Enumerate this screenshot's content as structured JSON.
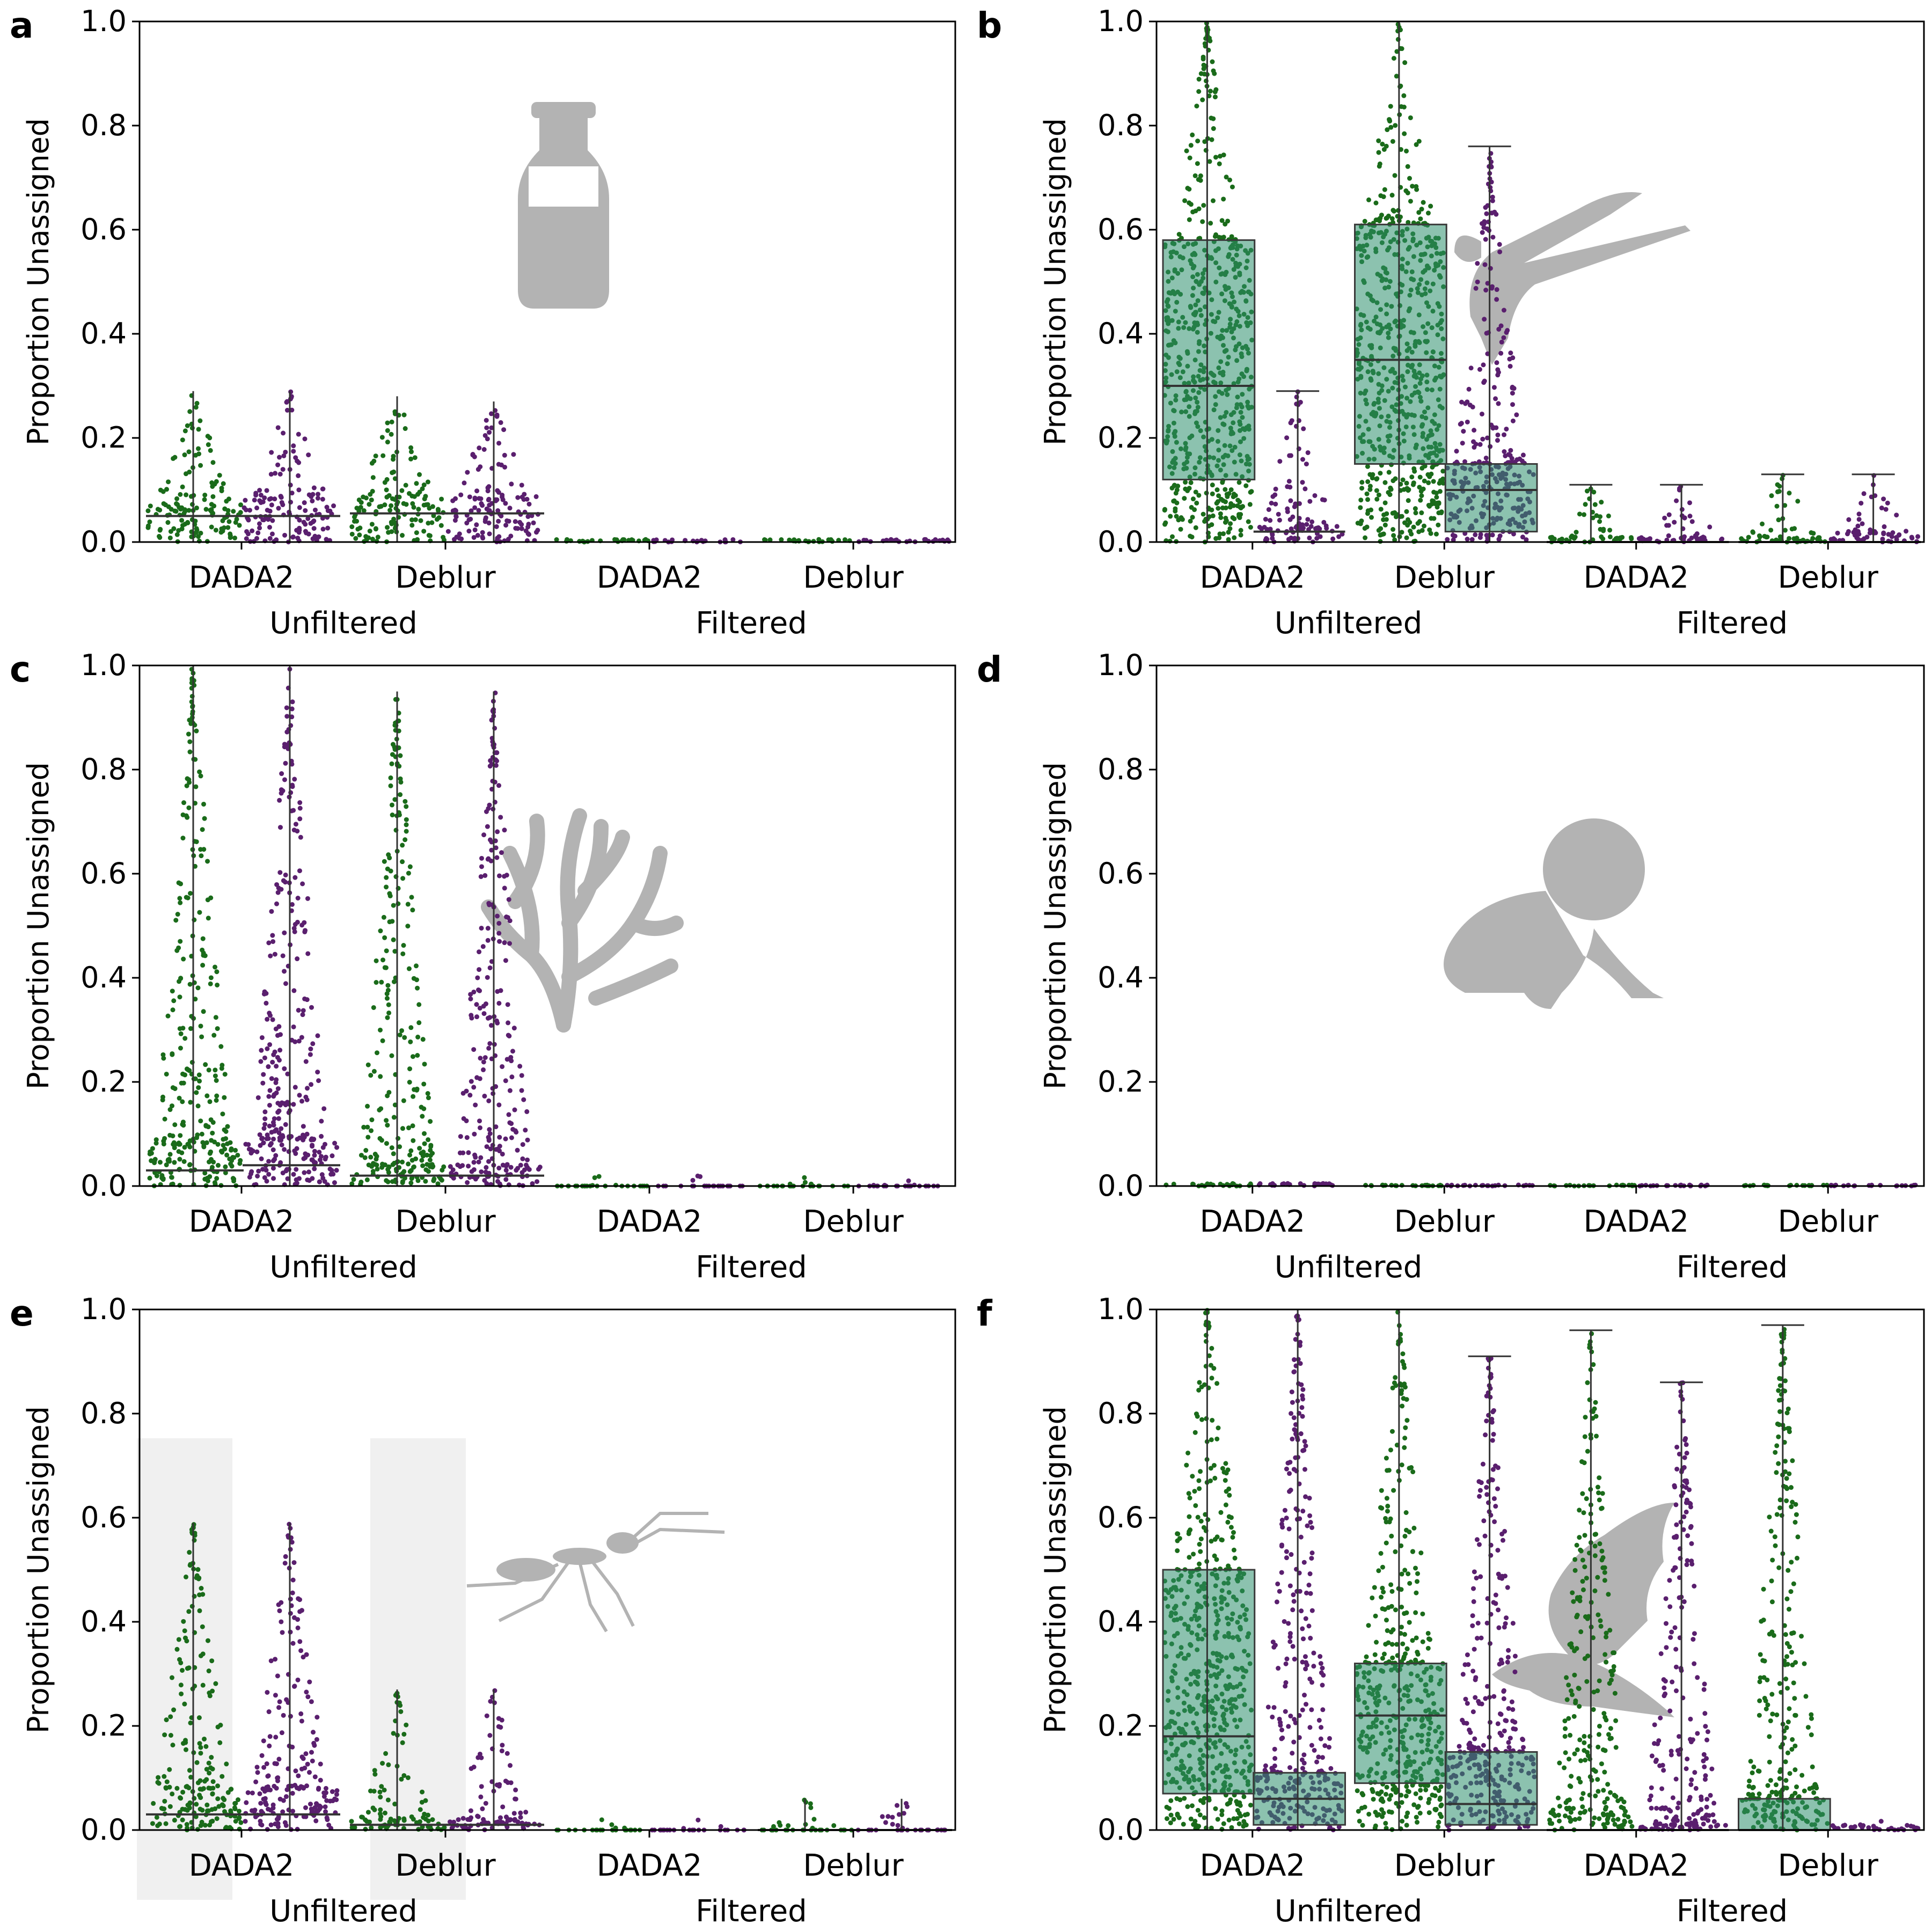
{
  "figure": {
    "ylabel": "Proportion Unassigned",
    "yticks": [
      "0.0",
      "0.2",
      "0.4",
      "0.6",
      "0.8",
      "1.0"
    ],
    "categories": [
      "DADA2",
      "Deblur",
      "DADA2",
      "Deblur"
    ],
    "groups": [
      "Unfiltered",
      "Filtered"
    ],
    "colors": {
      "dada2": "#1a6b1a",
      "deblur": "#5a1f6e",
      "silhouette": "#b3b3b3",
      "box": "#2d8f6e"
    }
  },
  "chart_data": [
    {
      "panel": "a",
      "type": "swarm",
      "silhouette": "milk-bottle-icon",
      "ylim": [
        0,
        1
      ],
      "ylabel": "Proportion Unassigned",
      "categories": [
        "DADA2",
        "Deblur",
        "DADA2",
        "Deblur"
      ],
      "groups": [
        "Unfiltered",
        "Filtered"
      ],
      "series": [
        {
          "values": [
            [
              0.0,
              0.29,
              0.05,
              0.03
            ],
            [
              0.0,
              0.28,
              0.055,
              0.03
            ],
            [
              0.0,
              0.005,
              0.0,
              0.0
            ],
            [
              0.0,
              0.005,
              0.0,
              0.0
            ]
          ]
        },
        {
          "values": [
            [
              0.0,
              0.29,
              0.05,
              0.03
            ],
            [
              0.0,
              0.27,
              0.055,
              0.03
            ],
            [
              0.0,
              0.005,
              0.0,
              0.0
            ],
            [
              0.0,
              0.005,
              0.0,
              0.0
            ]
          ]
        }
      ]
    },
    {
      "panel": "b",
      "type": "box+swarm",
      "silhouette": "hummingbird-icon",
      "ylim": [
        0,
        1
      ],
      "ylabel": "Proportion Unassigned",
      "categories": [
        "DADA2",
        "Deblur",
        "DADA2",
        "Deblur"
      ],
      "groups": [
        "Unfiltered",
        "Filtered"
      ],
      "series": [
        {
          "values": [
            [
              0.0,
              1.0,
              0.3,
              0.12,
              0.58
            ],
            [
              0.0,
              1.0,
              0.35,
              0.15,
              0.61
            ],
            [
              0.0,
              0.11,
              0.0,
              0.0,
              0.01
            ],
            [
              0.0,
              0.13,
              0.0,
              0.0,
              0.01
            ]
          ]
        },
        {
          "values": [
            [
              0.0,
              0.29,
              0.02,
              0.0,
              0.03
            ],
            [
              0.0,
              0.76,
              0.1,
              0.02,
              0.15
            ],
            [
              0.0,
              0.11,
              0.0,
              0.0,
              0.01
            ],
            [
              0.0,
              0.13,
              0.0,
              0.0,
              0.02
            ]
          ]
        }
      ]
    },
    {
      "panel": "c",
      "type": "swarm",
      "silhouette": "coral-icon",
      "ylim": [
        0,
        1
      ],
      "ylabel": "Proportion Unassigned",
      "categories": [
        "DADA2",
        "Deblur",
        "DADA2",
        "Deblur"
      ],
      "groups": [
        "Unfiltered",
        "Filtered"
      ],
      "series": [
        {
          "values": [
            [
              0.0,
              1.0,
              0.03,
              0.01,
              0.08
            ],
            [
              0.0,
              0.95,
              0.02,
              0.01,
              0.04
            ],
            [
              0.0,
              0.02,
              0.0,
              0.0,
              0.0
            ],
            [
              0.0,
              0.02,
              0.0,
              0.0,
              0.0
            ]
          ]
        },
        {
          "values": [
            [
              0.0,
              1.0,
              0.04,
              0.01,
              0.09
            ],
            [
              0.0,
              0.95,
              0.02,
              0.01,
              0.04
            ],
            [
              0.0,
              0.02,
              0.0,
              0.0,
              0.0
            ],
            [
              0.0,
              0.02,
              0.0,
              0.0,
              0.0
            ]
          ]
        }
      ]
    },
    {
      "panel": "d",
      "type": "swarm",
      "silhouette": "baby-icon",
      "ylim": [
        0,
        1
      ],
      "ylabel": "Proportion Unassigned",
      "categories": [
        "DADA2",
        "Deblur",
        "DADA2",
        "Deblur"
      ],
      "groups": [
        "Unfiltered",
        "Filtered"
      ],
      "series": [
        {
          "values": [
            [
              0.0,
              0.005,
              0.0,
              0.0
            ],
            [
              0.0,
              0.002,
              0.0,
              0.0
            ],
            [
              0.0,
              0.002,
              0.0,
              0.0
            ],
            [
              0.0,
              0.002,
              0.0,
              0.0
            ]
          ]
        },
        {
          "values": [
            [
              0.0,
              0.005,
              0.0,
              0.0
            ],
            [
              0.0,
              0.002,
              0.0,
              0.0
            ],
            [
              0.0,
              0.002,
              0.0,
              0.0
            ],
            [
              0.0,
              0.002,
              0.0,
              0.0
            ]
          ]
        }
      ]
    },
    {
      "panel": "e",
      "type": "swarm",
      "silhouette": "ant-icon",
      "ylim": [
        0,
        1
      ],
      "ylabel": "Proportion Unassigned",
      "categories": [
        "DADA2",
        "Deblur",
        "DADA2",
        "Deblur"
      ],
      "groups": [
        "Unfiltered",
        "Filtered"
      ],
      "series": [
        {
          "values": [
            [
              0.0,
              0.59,
              0.03,
              0.0,
              0.08
            ],
            [
              0.0,
              0.27,
              0.01,
              0.0,
              0.02
            ],
            [
              0.0,
              0.02,
              0.0,
              0.0,
              0.0
            ],
            [
              0.0,
              0.06,
              0.0,
              0.0,
              0.0
            ]
          ]
        },
        {
          "values": [
            [
              0.0,
              0.59,
              0.03,
              0.0,
              0.08
            ],
            [
              0.0,
              0.27,
              0.01,
              0.0,
              0.02
            ],
            [
              0.0,
              0.02,
              0.0,
              0.0,
              0.0
            ],
            [
              0.0,
              0.06,
              0.0,
              0.0,
              0.0
            ]
          ]
        }
      ]
    },
    {
      "panel": "f",
      "type": "box+swarm",
      "silhouette": "bird-icon",
      "ylim": [
        0,
        1
      ],
      "ylabel": "Proportion Unassigned",
      "categories": [
        "DADA2",
        "Deblur",
        "DADA2",
        "Deblur"
      ],
      "groups": [
        "Unfiltered",
        "Filtered"
      ],
      "series": [
        {
          "values": [
            [
              0.0,
              1.0,
              0.18,
              0.07,
              0.5
            ],
            [
              0.0,
              1.0,
              0.22,
              0.09,
              0.32
            ],
            [
              0.0,
              0.96,
              0.0,
              0.0,
              0.04
            ],
            [
              0.0,
              0.97,
              0.0,
              0.0,
              0.06
            ]
          ]
        },
        {
          "values": [
            [
              0.0,
              1.0,
              0.06,
              0.01,
              0.11
            ],
            [
              0.0,
              0.91,
              0.05,
              0.01,
              0.15
            ],
            [
              0.0,
              0.86,
              0.0,
              0.0,
              0.01
            ],
            [
              0.0,
              0.02,
              0.0,
              0.0,
              0.01
            ]
          ]
        }
      ]
    }
  ]
}
